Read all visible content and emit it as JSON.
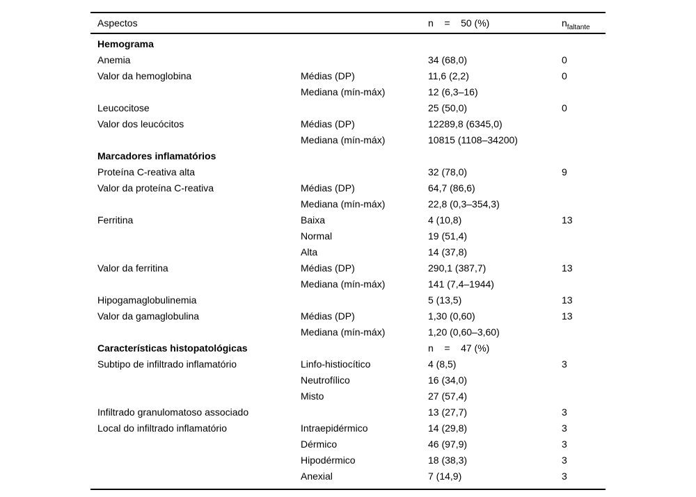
{
  "table": {
    "header": {
      "col_aspect": "Aspectos",
      "col_n": "n    =    50 (%)",
      "col_missing_main": "n",
      "col_missing_sub": "faltante"
    },
    "rows": [
      {
        "aspect": "Hemograma",
        "bold": true,
        "qualifier": "",
        "value": "",
        "missing": ""
      },
      {
        "aspect": "Anemia",
        "bold": false,
        "qualifier": "",
        "value": "34 (68,0)",
        "missing": "0"
      },
      {
        "aspect": "Valor da hemoglobina",
        "bold": false,
        "qualifier": "Médias (DP)",
        "value": "11,6 (2,2)",
        "missing": "0"
      },
      {
        "aspect": "",
        "bold": false,
        "qualifier": "Mediana (mín-máx)",
        "value": "12 (6,3–16)",
        "missing": ""
      },
      {
        "aspect": "Leucocitose",
        "bold": false,
        "qualifier": "",
        "value": "25 (50,0)",
        "missing": "0"
      },
      {
        "aspect": "Valor dos leucócitos",
        "bold": false,
        "qualifier": "Médias (DP)",
        "value": "12289,8 (6345,0)",
        "missing": ""
      },
      {
        "aspect": "",
        "bold": false,
        "qualifier": "Mediana (mín-máx)",
        "value": "10815 (1108–34200)",
        "missing": ""
      },
      {
        "aspect": "Marcadores inflamatórios",
        "bold": true,
        "qualifier": "",
        "value": "",
        "missing": ""
      },
      {
        "aspect": "Proteína C-reativa alta",
        "bold": false,
        "qualifier": "",
        "value": "32 (78,0)",
        "missing": "9"
      },
      {
        "aspect": "Valor da proteína C-reativa",
        "bold": false,
        "qualifier": "Médias (DP)",
        "value": "64,7 (86,6)",
        "missing": ""
      },
      {
        "aspect": "",
        "bold": false,
        "qualifier": "Mediana (mín-máx)",
        "value": "22,8 (0,3–354,3)",
        "missing": ""
      },
      {
        "aspect": "Ferritina",
        "bold": false,
        "qualifier": "Baixa",
        "value": "4 (10,8)",
        "missing": "13"
      },
      {
        "aspect": "",
        "bold": false,
        "qualifier": "Normal",
        "value": "19 (51,4)",
        "missing": ""
      },
      {
        "aspect": "",
        "bold": false,
        "qualifier": "Alta",
        "value": "14 (37,8)",
        "missing": ""
      },
      {
        "aspect": "Valor da ferritina",
        "bold": false,
        "qualifier": "Médias (DP)",
        "value": "290,1 (387,7)",
        "missing": "13"
      },
      {
        "aspect": "",
        "bold": false,
        "qualifier": "Mediana (mín-máx)",
        "value": "141 (7,4–1944)",
        "missing": ""
      },
      {
        "aspect": "Hipogamaglobulinemia",
        "bold": false,
        "qualifier": "",
        "value": "5 (13,5)",
        "missing": "13"
      },
      {
        "aspect": "Valor da gamaglobulina",
        "bold": false,
        "qualifier": "Médias (DP)",
        "value": "1,30 (0,60)",
        "missing": "13"
      },
      {
        "aspect": "",
        "bold": false,
        "qualifier": "Mediana (mín-máx)",
        "value": "1,20 (0,60–3,60)",
        "missing": ""
      },
      {
        "aspect": "Características histopatológicas",
        "bold": true,
        "qualifier": "",
        "value": "n    =    47 (%)",
        "missing": ""
      },
      {
        "aspect": "Subtipo de infiltrado inflamatório",
        "bold": false,
        "qualifier": "Linfo-histiocítico",
        "value": "4 (8,5)",
        "missing": "3"
      },
      {
        "aspect": "",
        "bold": false,
        "qualifier": "Neutrofílico",
        "value": "16 (34,0)",
        "missing": ""
      },
      {
        "aspect": "",
        "bold": false,
        "qualifier": "Misto",
        "value": "27 (57,4)",
        "missing": ""
      },
      {
        "aspect": "Infiltrado granulomatoso associado",
        "bold": false,
        "qualifier": "",
        "value": "13 (27,7)",
        "missing": "3"
      },
      {
        "aspect": "Local do infiltrado inflamatório",
        "bold": false,
        "qualifier": "Intraepidérmico",
        "value": "14 (29,8)",
        "missing": "3"
      },
      {
        "aspect": "",
        "bold": false,
        "qualifier": "Dérmico",
        "value": "46 (97,9)",
        "missing": "3"
      },
      {
        "aspect": "",
        "bold": false,
        "qualifier": "Hipodérmico",
        "value": "18 (38,3)",
        "missing": "3"
      },
      {
        "aspect": "",
        "bold": false,
        "qualifier": "Anexial",
        "value": "7 (14,9)",
        "missing": "3"
      }
    ]
  }
}
